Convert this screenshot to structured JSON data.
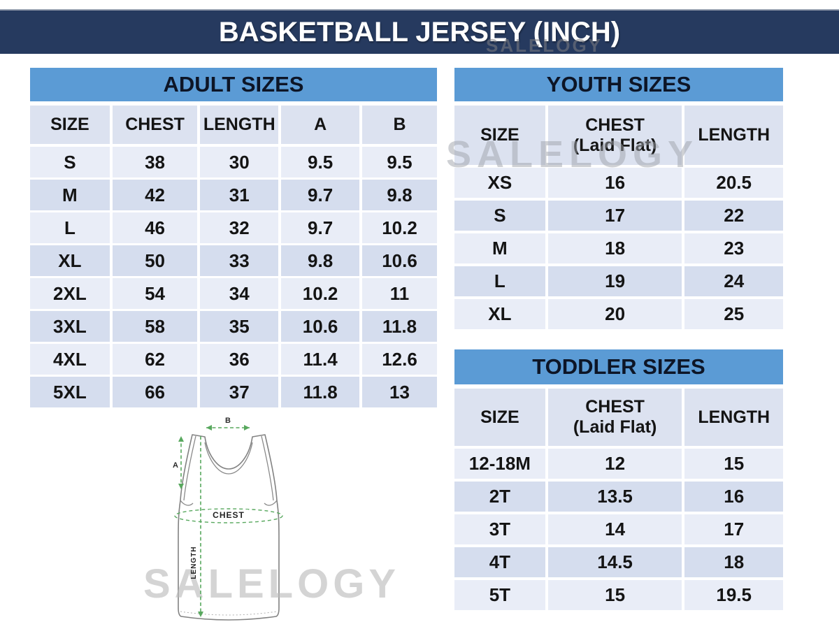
{
  "header": {
    "title": "BASKETBALL JERSEY (INCH)"
  },
  "watermark": {
    "text": "SALELOGY"
  },
  "colors": {
    "banner_navy": "#263a5f",
    "band_blue": "#5b9bd5",
    "header_row": "#dce2f0",
    "row_light": "#e9edf7",
    "row_dark": "#d5ddee",
    "measure_green": "#58a85e"
  },
  "tables": {
    "adult": {
      "title": "ADULT SIZES",
      "columns": [
        [
          "SIZE"
        ],
        [
          "CHEST"
        ],
        [
          "LENGTH"
        ],
        [
          "A"
        ],
        [
          "B"
        ]
      ],
      "rows": [
        [
          "S",
          "38",
          "30",
          "9.5",
          "9.5"
        ],
        [
          "M",
          "42",
          "31",
          "9.7",
          "9.8"
        ],
        [
          "L",
          "46",
          "32",
          "9.7",
          "10.2"
        ],
        [
          "XL",
          "50",
          "33",
          "9.8",
          "10.6"
        ],
        [
          "2XL",
          "54",
          "34",
          "10.2",
          "11"
        ],
        [
          "3XL",
          "58",
          "35",
          "10.6",
          "11.8"
        ],
        [
          "4XL",
          "62",
          "36",
          "11.4",
          "12.6"
        ],
        [
          "5XL",
          "66",
          "37",
          "11.8",
          "13"
        ]
      ]
    },
    "youth": {
      "title": "YOUTH SIZES",
      "columns": [
        [
          "SIZE"
        ],
        [
          "CHEST",
          "(Laid Flat)"
        ],
        [
          "LENGTH"
        ]
      ],
      "rows": [
        [
          "XS",
          "16",
          "20.5"
        ],
        [
          "S",
          "17",
          "22"
        ],
        [
          "M",
          "18",
          "23"
        ],
        [
          "L",
          "19",
          "24"
        ],
        [
          "XL",
          "20",
          "25"
        ]
      ]
    },
    "toddler": {
      "title": "TODDLER SIZES",
      "columns": [
        [
          "SIZE"
        ],
        [
          "CHEST",
          "(Laid Flat)"
        ],
        [
          "LENGTH"
        ]
      ],
      "rows": [
        [
          "12-18M",
          "12",
          "15"
        ],
        [
          "2T",
          "13.5",
          "16"
        ],
        [
          "3T",
          "14",
          "17"
        ],
        [
          "4T",
          "14.5",
          "18"
        ],
        [
          "5T",
          "15",
          "19.5"
        ]
      ]
    }
  },
  "diagram": {
    "label_a": "A",
    "label_b": "B",
    "label_chest": "CHEST",
    "label_length": "LENGTH"
  }
}
